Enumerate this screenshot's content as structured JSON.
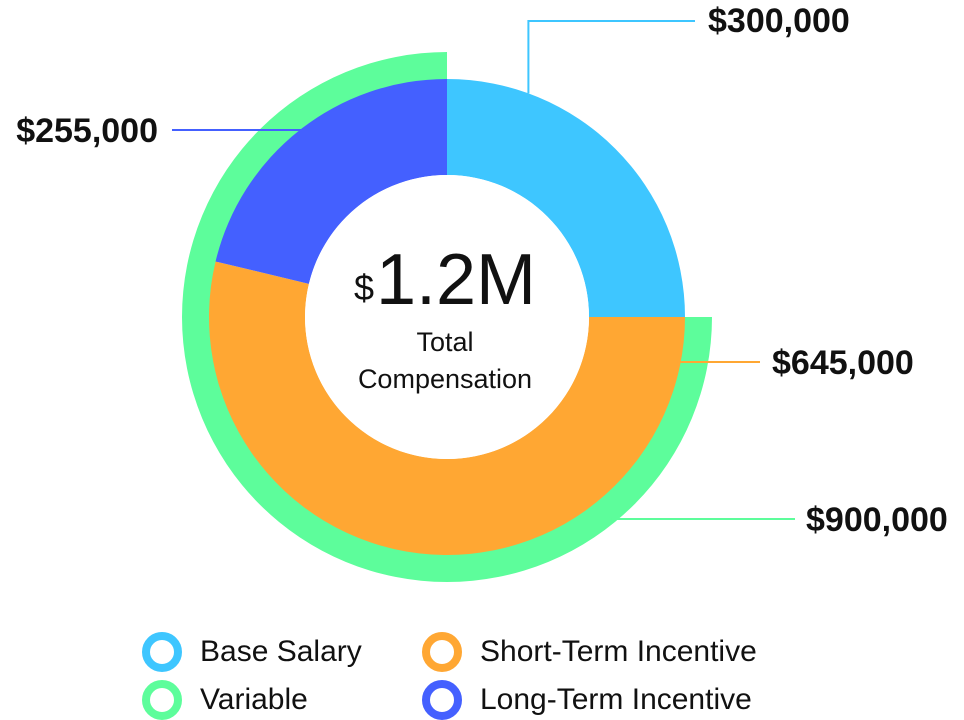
{
  "chart_data": {
    "type": "pie",
    "title": "",
    "center": {
      "currency_symbol": "$",
      "value": "1.2M",
      "label_line1": "Total",
      "label_line2": "Compensation"
    },
    "inner_ring": {
      "slices": [
        {
          "name": "Base Salary",
          "value": 300000,
          "label": "$300,000",
          "color": "#3ec6ff"
        },
        {
          "name": "Short-Term Incentive",
          "value": 645000,
          "label": "$645,000",
          "color": "#ffa733"
        },
        {
          "name": "Long-Term Incentive",
          "value": 255000,
          "label": "$255,000",
          "color": "#4460ff"
        }
      ]
    },
    "outer_ring": {
      "slices": [
        {
          "name": "Variable",
          "value": 900000,
          "label": "$900,000",
          "color": "#5dfd9b"
        }
      ]
    },
    "legend": {
      "placement": "bottom",
      "items": [
        {
          "label": "Base Salary",
          "color": "#3ec6ff"
        },
        {
          "label": "Short-Term Incentive",
          "color": "#ffa733"
        },
        {
          "label": "Variable",
          "color": "#5dfd9b"
        },
        {
          "label": "Long-Term Incentive",
          "color": "#4460ff"
        }
      ]
    }
  }
}
